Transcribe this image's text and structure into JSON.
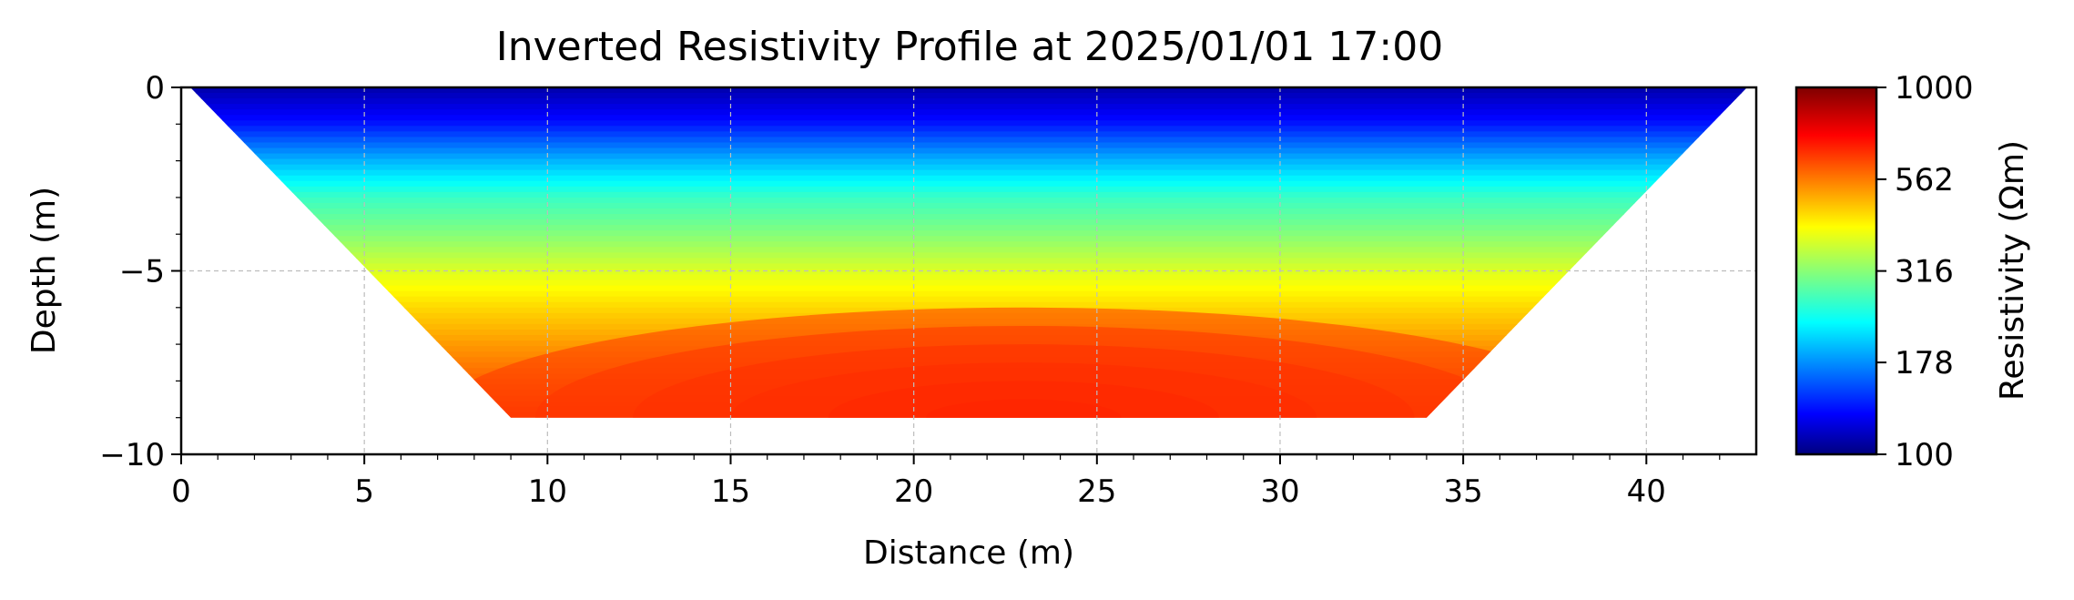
{
  "chart_data": {
    "type": "heatmap",
    "title": "Inverted Resistivity Profile at 2025/01/01 17:00",
    "xlabel": "Distance (m)",
    "ylabel": "Depth (m)",
    "xlim": [
      0,
      43
    ],
    "ylim": [
      -10,
      0
    ],
    "x_ticks": [
      0,
      5,
      10,
      15,
      20,
      25,
      30,
      35,
      40
    ],
    "y_ticks": [
      0,
      -5,
      -10
    ],
    "y_tick_labels": [
      "0",
      "−5",
      "−10"
    ],
    "grid": true,
    "colorbar": {
      "label": "Resistivity (Ωm)",
      "scale": "log",
      "range": [
        100,
        1000
      ],
      "ticks": [
        100,
        178,
        316,
        562,
        1000
      ],
      "tick_labels": [
        "100",
        "178",
        "316",
        "562",
        "1000"
      ],
      "colormap": "jet"
    },
    "section_outline": [
      [
        0.25,
        0
      ],
      [
        42.75,
        0
      ],
      [
        34,
        -9
      ],
      [
        9,
        -9
      ]
    ],
    "resistivity_by_depth": [
      {
        "depth": 0,
        "resistivity": 110
      },
      {
        "depth": -1,
        "resistivity": 140
      },
      {
        "depth": -2,
        "resistivity": 200
      },
      {
        "depth": -3,
        "resistivity": 270
      },
      {
        "depth": -4,
        "resistivity": 320
      },
      {
        "depth": -5,
        "resistivity": 390
      },
      {
        "depth": -6,
        "resistivity": 460
      },
      {
        "depth": -7,
        "resistivity": 530
      },
      {
        "depth": -8,
        "resistivity": 600
      },
      {
        "depth": -9,
        "resistivity": 660
      }
    ],
    "max_anomaly": {
      "x": 23,
      "depth": -9,
      "resistivity": 700
    }
  }
}
